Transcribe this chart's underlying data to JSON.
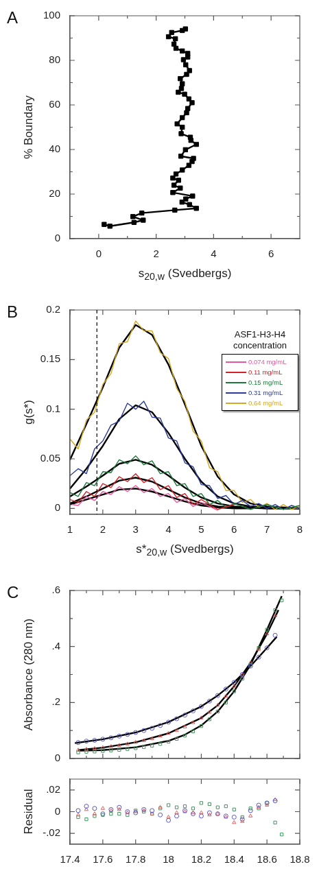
{
  "chart_data": [
    {
      "type": "line",
      "title": "A",
      "xlabel": "s$_{20,w}$ (Svedbergs)",
      "ylabel": "% Boundary",
      "marker": "square",
      "color": "#000000",
      "x": [
        0.19,
        0.39,
        1.23,
        1.55,
        1.19,
        1.5,
        2.65,
        3.4,
        3.16,
        2.9,
        3.03,
        3.27,
        2.58,
        2.84,
        2.62,
        2.78,
        2.58,
        2.69,
        2.91,
        3.14,
        3.25,
        3.3,
        2.86,
        3.02,
        3.4,
        3.21,
        3.19,
        2.87,
        2.91,
        2.73,
        2.91,
        3.06,
        3.1,
        3.25,
        3.14,
        2.99,
        2.77,
        2.88,
        2.91,
        2.84,
        3.06,
        3.16,
        3.03,
        2.95,
        3.1,
        3.1,
        2.91,
        2.69,
        2.62,
        2.67,
        2.43,
        2.54,
        2.91,
        3.02
      ],
      "values": [
        6.4,
        5.6,
        7.3,
        8.3,
        9.9,
        11.5,
        12.8,
        13.6,
        15.3,
        16.4,
        17.8,
        19.1,
        20.7,
        22.7,
        24,
        26.2,
        27.2,
        29,
        30.8,
        32.9,
        34.6,
        36,
        37,
        39.9,
        42.3,
        44.1,
        45.5,
        47.1,
        50,
        51.5,
        54.3,
        56.5,
        58.4,
        61,
        62.7,
        64.8,
        65.7,
        67.4,
        69.5,
        71.8,
        73.7,
        75.4,
        78,
        80.3,
        81.5,
        83.1,
        84.2,
        85.4,
        87.3,
        89.7,
        90.6,
        92.5,
        93.4,
        94.1
      ],
      "xlim": [
        -1,
        7
      ],
      "xticks": [
        0,
        {
          "value": 1,
          "label": null
        },
        2,
        {
          "value": 3,
          "label": null
        },
        4,
        {
          "value": 5,
          "label": null
        },
        6
      ],
      "ylim": [
        0,
        100
      ],
      "yticks": [
        0,
        {
          "value": 10,
          "label": null
        },
        20,
        {
          "value": 30,
          "label": null
        },
        40,
        {
          "value": 50,
          "label": null
        },
        60,
        {
          "value": 70,
          "label": null
        },
        80,
        {
          "value": 90,
          "label": null
        },
        100
      ]
    },
    {
      "type": "line",
      "title": "B",
      "xlabel": "s*$_{20,w}$ (Svedbergs)",
      "ylabel": "g(s*)",
      "legend": "top right",
      "legend_title": "ASF1-H3-H4 concentration",
      "marker": "none",
      "x": [
        1,
        1.25,
        1.5,
        1.75,
        2,
        2.25,
        2.5,
        2.75,
        3,
        3.25,
        3.5,
        3.75,
        4,
        4.25,
        4.5,
        4.75,
        5,
        5.25,
        5.5,
        5.75,
        6,
        6.25,
        6.5,
        6.75,
        7,
        7.25,
        7.5,
        7.75,
        8
      ],
      "series": [
        {
          "name": "0.074 mg/mL",
          "color": "#e8559a",
          "x": [
            1.05,
            1.25,
            1.5,
            1.75,
            2,
            2.25,
            2.5,
            2.75,
            3,
            3.25,
            3.5,
            3.75,
            4,
            4.25,
            4.5,
            4.75,
            5,
            5.5
          ],
          "values": [
            0.004,
            0.003,
            0.012,
            0.008,
            0.017,
            0.014,
            0.022,
            0.017,
            0.023,
            0.016,
            0.02,
            0.012,
            0.015,
            0.006,
            0.01,
            0.002,
            0.006,
            -0.002
          ]
        },
        {
          "name": "0.11 mg/mL",
          "color": "#d42027",
          "x": [
            1,
            1.25,
            1.5,
            1.75,
            2,
            2.25,
            2.5,
            2.75,
            3,
            3.25,
            3.5,
            3.75,
            4,
            4.25,
            4.5,
            4.75,
            5,
            5.5,
            6
          ],
          "values": [
            0.009,
            0.006,
            0.017,
            0.012,
            0.025,
            0.021,
            0.032,
            0.027,
            0.035,
            0.026,
            0.031,
            0.019,
            0.023,
            0.011,
            0.015,
            0.004,
            0.009,
            -0.001,
            0.004
          ]
        },
        {
          "name": "0.15 mg/mL",
          "color": "#1a7a3a",
          "x": [
            1,
            1.25,
            1.5,
            1.75,
            2,
            2.25,
            2.5,
            2.75,
            3,
            3.25,
            3.5,
            3.75,
            4,
            4.25,
            4.5,
            4.75,
            5,
            5.25,
            5.5,
            5.75,
            6,
            6.5,
            7,
            7.5,
            8
          ],
          "values": [
            0.016,
            0.012,
            0.026,
            0.023,
            0.037,
            0.036,
            0.049,
            0.045,
            0.053,
            0.044,
            0.048,
            0.035,
            0.037,
            0.023,
            0.025,
            0.012,
            0.015,
            0.004,
            0.008,
            0.001,
            0.005,
            -0.001,
            0.004,
            -0.001,
            0.003
          ]
        },
        {
          "name": "0.31 mg/mL",
          "color": "#2a3a9e",
          "values": [
            0.033,
            0.04,
            0.035,
            0.06,
            0.068,
            0.084,
            0.088,
            0.106,
            0.1,
            0.108,
            0.092,
            0.091,
            0.071,
            0.068,
            0.046,
            0.042,
            0.024,
            0.023,
            0.01,
            0.013,
            0.004,
            0.008,
            0.002,
            0.005,
            0,
            0.004,
            -0.001,
            0.003,
            0
          ]
        },
        {
          "name": "0.64 mg/mL",
          "color": "#d4a820",
          "values": [
            0.07,
            0.06,
            0.089,
            0.097,
            0.125,
            0.136,
            0.166,
            0.168,
            0.189,
            0.179,
            0.179,
            0.157,
            0.151,
            0.121,
            0.108,
            0.078,
            0.068,
            0.041,
            0.037,
            0.018,
            0.018,
            0.006,
            0.009,
            0.001,
            0.005,
            -0.001,
            0.004,
            -0.001,
            0.002
          ]
        },
        {
          "color": "#000000",
          "x": [
            1,
            1.5,
            2,
            2.5,
            3,
            3.5,
            4,
            4.5,
            5,
            5.5,
            6,
            6.5
          ],
          "values": [
            0.004,
            0.009,
            0.014,
            0.019,
            0.02,
            0.017,
            0.012,
            0.007,
            0.003,
            0.001,
            0,
            0
          ]
        },
        {
          "color": "#000000",
          "x": [
            1,
            1.5,
            2,
            2.5,
            3,
            3.5,
            4,
            4.5,
            5,
            5.5,
            6,
            7,
            8
          ],
          "values": [
            0.005,
            0.012,
            0.02,
            0.028,
            0.031,
            0.027,
            0.019,
            0.011,
            0.005,
            0.002,
            0.001,
            0,
            0
          ]
        },
        {
          "color": "#000000",
          "x": [
            1,
            1.5,
            2,
            2.5,
            3,
            3.5,
            4,
            4.5,
            5,
            5.5,
            6,
            7,
            8
          ],
          "values": [
            0.012,
            0.022,
            0.033,
            0.045,
            0.049,
            0.044,
            0.033,
            0.021,
            0.011,
            0.005,
            0.002,
            0,
            0
          ]
        },
        {
          "color": "#000000",
          "x": [
            1,
            1.5,
            2,
            2.5,
            3,
            3.5,
            4,
            4.5,
            5,
            5.5,
            6,
            6.5,
            7,
            8
          ],
          "values": [
            0.02,
            0.04,
            0.063,
            0.09,
            0.104,
            0.097,
            0.076,
            0.05,
            0.027,
            0.012,
            0.005,
            0.002,
            0.001,
            0
          ]
        },
        {
          "color": "#000000",
          "x": [
            1,
            1.5,
            2,
            2.5,
            3,
            3.5,
            4,
            4.5,
            5,
            5.5,
            6,
            6.5,
            7,
            8
          ],
          "values": [
            0.049,
            0.085,
            0.122,
            0.162,
            0.185,
            0.175,
            0.145,
            0.105,
            0.063,
            0.032,
            0.014,
            0.005,
            0.002,
            0
          ]
        }
      ],
      "ref_lines": [
        {
          "axis": "x",
          "value": 1.82,
          "line_style": "dashed",
          "color": "#000000"
        }
      ],
      "xlim": [
        1,
        8
      ],
      "xticks": [
        1,
        2,
        3,
        4,
        5,
        6,
        7,
        8
      ],
      "ylim": [
        -0.006,
        0.2
      ],
      "yticks": [
        0,
        0.05,
        0.1,
        0.15,
        0.2
      ]
    },
    {
      "type": "scatter",
      "title": "C",
      "ylabel": "Absorbance (280 nm)",
      "tick_labels": "y",
      "x": [
        17.45,
        17.5,
        17.55,
        17.6,
        17.65,
        17.7,
        17.75,
        17.8,
        17.85,
        17.9,
        17.95,
        18,
        18.05,
        18.1,
        18.15,
        18.2,
        18.25,
        18.3,
        18.35,
        18.4,
        18.45,
        18.5,
        18.55,
        18.6,
        18.65
      ],
      "series": [
        {
          "color": "#5a5ac0",
          "marker": "circle",
          "values": [
            0.057,
            0.062,
            0.065,
            0.069,
            0.074,
            0.08,
            0.086,
            0.093,
            0.1,
            0.108,
            0.118,
            0.13,
            0.142,
            0.155,
            0.17,
            0.186,
            0.205,
            0.225,
            0.248,
            0.272,
            0.3,
            0.33,
            0.362,
            0.395,
            0.44
          ]
        },
        {
          "color": "#e06060",
          "marker": "triangle",
          "values": [
            0.03,
            0.033,
            0.036,
            0.039,
            0.043,
            0.047,
            0.052,
            0.058,
            0.064,
            0.071,
            0.08,
            0.09,
            0.1,
            0.113,
            0.128,
            0.145,
            0.165,
            0.19,
            0.222,
            0.258,
            0.298,
            0.342,
            0.39,
            0.445,
            0.51
          ]
        },
        {
          "color": "#3a9a5a",
          "marker": "square",
          "x": [
            17.45,
            17.5,
            17.55,
            17.6,
            17.65,
            17.7,
            17.75,
            17.8,
            17.85,
            17.9,
            17.95,
            18,
            18.05,
            18.1,
            18.15,
            18.2,
            18.25,
            18.3,
            18.35,
            18.4,
            18.45,
            18.5,
            18.55,
            18.6,
            18.65,
            18.69
          ],
          "values": [
            0.022,
            0.024,
            0.025,
            0.027,
            0.029,
            0.031,
            0.034,
            0.037,
            0.041,
            0.046,
            0.052,
            0.06,
            0.07,
            0.082,
            0.097,
            0.116,
            0.14,
            0.168,
            0.2,
            0.24,
            0.285,
            0.335,
            0.395,
            0.46,
            0.53,
            0.565
          ]
        },
        {
          "type": "line",
          "color": "#000000",
          "x": [
            17.43,
            17.6,
            17.8,
            18,
            18.2,
            18.3,
            18.4,
            18.5,
            18.6,
            18.66
          ],
          "values": [
            0.055,
            0.069,
            0.093,
            0.13,
            0.186,
            0.225,
            0.272,
            0.33,
            0.395,
            0.435
          ]
        },
        {
          "type": "line",
          "color": "#000000",
          "x": [
            17.45,
            17.6,
            17.8,
            18,
            18.2,
            18.3,
            18.4,
            18.5,
            18.6,
            18.67
          ],
          "values": [
            0.03,
            0.039,
            0.058,
            0.09,
            0.145,
            0.19,
            0.258,
            0.342,
            0.445,
            0.53
          ]
        },
        {
          "type": "line",
          "color": "#000000",
          "x": [
            17.45,
            17.6,
            17.8,
            18,
            18.1,
            18.2,
            18.3,
            18.4,
            18.5,
            18.6,
            18.69
          ],
          "values": [
            0.028,
            0.03,
            0.04,
            0.063,
            0.085,
            0.118,
            0.168,
            0.24,
            0.335,
            0.46,
            0.58
          ]
        }
      ],
      "xlim": [
        17.4,
        18.8
      ],
      "xticks": [
        17.4,
        {
          "value": 17.5,
          "label": null
        },
        17.6,
        {
          "value": 17.7,
          "label": null
        },
        17.8,
        {
          "value": 17.9,
          "label": null
        },
        18,
        {
          "value": 18.1,
          "label": null
        },
        18.2,
        {
          "value": 18.3,
          "label": null
        },
        18.4,
        {
          "value": 18.5,
          "label": null
        },
        18.6,
        {
          "value": 18.7,
          "label": null
        },
        18.8
      ],
      "ylim": [
        0,
        0.6
      ],
      "yticks": [
        0,
        {
          "value": 0.1,
          "label": null
        },
        {
          "value": 0.2,
          "label": ".2"
        },
        {
          "value": 0.3,
          "label": null
        },
        {
          "value": 0.4,
          "label": ".4"
        },
        {
          "value": 0.5,
          "label": null
        },
        {
          "value": 0.6,
          "label": ".6"
        }
      ]
    },
    {
      "type": "scatter",
      "ylabel": "Residual",
      "x": [
        17.45,
        17.5,
        17.55,
        17.6,
        17.65,
        17.7,
        17.75,
        17.8,
        17.85,
        17.9,
        17.95,
        18,
        18.05,
        18.1,
        18.15,
        18.2,
        18.25,
        18.3,
        18.35,
        18.4,
        18.45,
        18.5,
        18.55,
        18.6,
        18.65
      ],
      "series": [
        {
          "color": "#5a5ac0",
          "marker": "circle",
          "values": [
            0.001,
            0.005,
            0.003,
            -0.002,
            0.002,
            0.004,
            0,
            -0.001,
            0.002,
            0.001,
            -0.003,
            -0.008,
            -0.004,
            0.001,
            -0.002,
            -0.004,
            -0.001,
            -0.002,
            -0.004,
            -0.005,
            -0.007,
            0.001,
            0.006,
            0.008,
            0.01
          ]
        },
        {
          "color": "#e06060",
          "marker": "triangle",
          "values": [
            -0.003,
            0.002,
            -0.002,
            0.003,
            0.001,
            0.002,
            -0.001,
            0,
            0.001,
            -0.002,
            0.004,
            -0.005,
            -0.001,
            0,
            -0.001,
            -0.001,
            -0.003,
            -0.002,
            -0.005,
            -0.01,
            -0.009,
            -0.004,
            0.004,
            0.006,
            0.011
          ]
        },
        {
          "color": "#3a9a5a",
          "marker": "square",
          "x": [
            17.45,
            17.5,
            17.55,
            17.6,
            17.65,
            17.7,
            17.75,
            17.8,
            17.85,
            17.9,
            17.95,
            18,
            18.05,
            18.1,
            18.15,
            18.2,
            18.25,
            18.3,
            18.35,
            18.4,
            18.45,
            18.5,
            18.55,
            18.6,
            18.65,
            18.69
          ],
          "values": [
            -0.005,
            -0.007,
            -0.004,
            -0.003,
            -0.002,
            -0.002,
            -0.003,
            0.001,
            0,
            -0.002,
            0.003,
            0.006,
            0.004,
            0.005,
            0.003,
            0.008,
            0.007,
            0.004,
            0.005,
            0.002,
            -0.005,
            0.003,
            0.003,
            0.008,
            -0.01,
            -0.021
          ]
        }
      ],
      "xlim": [
        17.4,
        18.8
      ],
      "xticks": [
        17.4,
        17.6,
        17.8,
        18,
        18.2,
        18.4,
        18.6,
        18.8
      ],
      "ylim": [
        -0.03,
        0.03
      ],
      "yticks": [
        {
          "value": -0.02,
          "label": "-.02"
        },
        0,
        {
          "value": 0.02,
          "label": ".02"
        }
      ]
    }
  ]
}
